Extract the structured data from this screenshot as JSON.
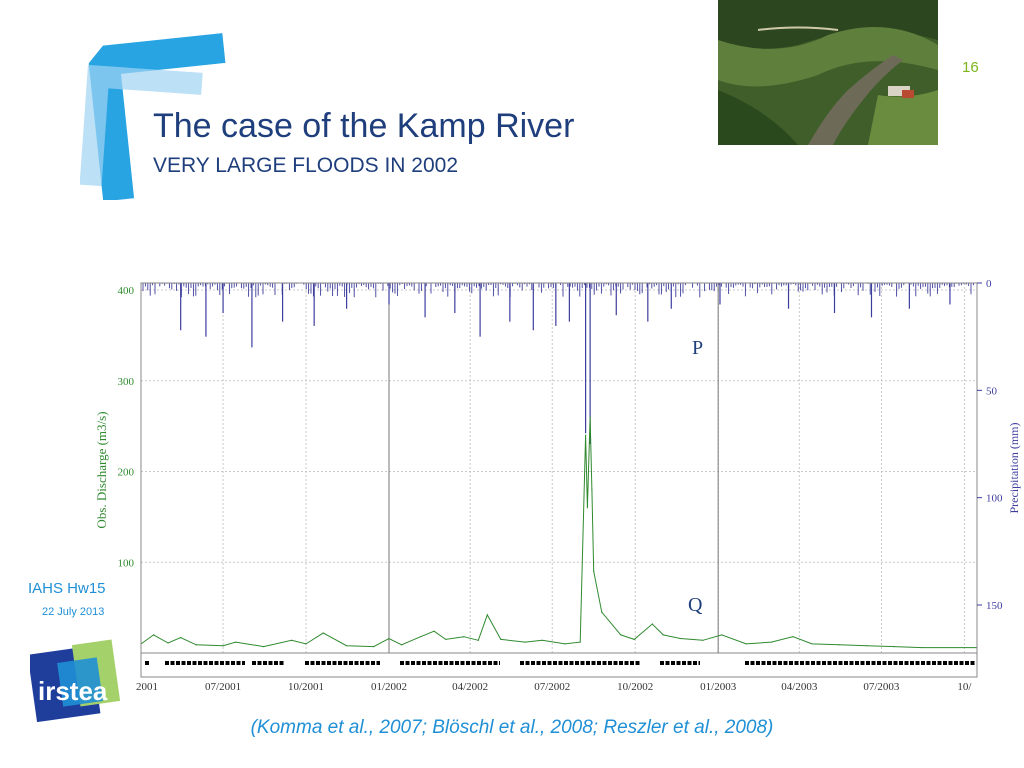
{
  "slide": {
    "title": "The case of the Kamp River",
    "subtitle": "VERY LARGE FLOODS IN 2002",
    "number": "16",
    "conference": "IAHS Hw15",
    "date": "22 July 2013",
    "logo_text": "irstea",
    "citation": "(Komma et al., 2007; Blöschl et al., 2008; Reszler et al., 2008)"
  },
  "colors": {
    "title": "#1f3e7c",
    "accent_blue": "#1f8fd6",
    "slide_number": "#7bb51b",
    "discharge": "#2f8a2f",
    "precipitation": "#3d3d9e",
    "axis_left": "#2f8a2f",
    "axis_right": "#3d3d9e"
  },
  "chart_data": {
    "type": "line",
    "xlabel": "",
    "y_left_label": "Obs. Discharge (m3/s)",
    "y_right_label": "Precipitation (mm)",
    "x_tick_labels": [
      "2001",
      "07/2001",
      "10/2001",
      "01/2002",
      "04/2002",
      "07/2002",
      "10/2002",
      "01/2003",
      "04/2003",
      "07/2003",
      "10/"
    ],
    "y_left_ticks": [
      100,
      200,
      300,
      400
    ],
    "y_right_ticks": [
      0,
      50,
      100,
      150
    ],
    "y_left_range": [
      0,
      400
    ],
    "y_right_range": [
      0,
      175
    ],
    "x_range": [
      "2001-04-01",
      "2003-10-15"
    ],
    "grid": true,
    "annotations": [
      "P",
      "Q"
    ],
    "series": [
      {
        "name": "Q",
        "axis": "left",
        "points": [
          [
            "2001-04-01",
            10
          ],
          [
            "2001-04-15",
            20
          ],
          [
            "2001-05-01",
            11
          ],
          [
            "2001-05-15",
            17
          ],
          [
            "2001-06-01",
            9
          ],
          [
            "2001-07-01",
            8
          ],
          [
            "2001-07-15",
            12
          ],
          [
            "2001-08-15",
            7
          ],
          [
            "2001-09-15",
            14
          ],
          [
            "2001-10-01",
            10
          ],
          [
            "2001-10-20",
            22
          ],
          [
            "2001-11-15",
            8
          ],
          [
            "2001-12-15",
            7
          ],
          [
            "2002-01-01",
            16
          ],
          [
            "2002-01-15",
            9
          ],
          [
            "2002-02-05",
            18
          ],
          [
            "2002-02-20",
            24
          ],
          [
            "2002-03-05",
            15
          ],
          [
            "2002-03-25",
            18
          ],
          [
            "2002-04-10",
            14
          ],
          [
            "2002-04-20",
            42
          ],
          [
            "2002-05-05",
            15
          ],
          [
            "2002-06-01",
            12
          ],
          [
            "2002-06-20",
            14
          ],
          [
            "2002-07-15",
            10
          ],
          [
            "2002-08-01",
            12
          ],
          [
            "2002-08-07",
            240
          ],
          [
            "2002-08-09",
            160
          ],
          [
            "2002-08-12",
            260
          ],
          [
            "2002-08-14",
            180
          ],
          [
            "2002-08-16",
            90
          ],
          [
            "2002-08-25",
            45
          ],
          [
            "2002-09-15",
            20
          ],
          [
            "2002-09-30",
            15
          ],
          [
            "2002-10-20",
            32
          ],
          [
            "2002-11-01",
            20
          ],
          [
            "2002-11-20",
            16
          ],
          [
            "2002-12-15",
            14
          ],
          [
            "2003-01-05",
            20
          ],
          [
            "2003-02-01",
            10
          ],
          [
            "2003-03-01",
            12
          ],
          [
            "2003-03-25",
            18
          ],
          [
            "2003-04-15",
            10
          ],
          [
            "2003-05-15",
            9
          ],
          [
            "2003-06-15",
            8
          ],
          [
            "2003-07-15",
            7
          ],
          [
            "2003-08-15",
            6
          ],
          [
            "2003-10-15",
            6
          ]
        ]
      },
      {
        "name": "P",
        "axis": "right",
        "points": [
          [
            "2001-05-15",
            22
          ],
          [
            "2001-06-12",
            25
          ],
          [
            "2001-07-01",
            14
          ],
          [
            "2001-08-02",
            30
          ],
          [
            "2001-09-05",
            18
          ],
          [
            "2001-10-10",
            20
          ],
          [
            "2001-11-15",
            12
          ],
          [
            "2002-01-01",
            10
          ],
          [
            "2002-02-10",
            16
          ],
          [
            "2002-03-15",
            14
          ],
          [
            "2002-04-12",
            25
          ],
          [
            "2002-05-15",
            18
          ],
          [
            "2002-06-10",
            22
          ],
          [
            "2002-07-05",
            20
          ],
          [
            "2002-07-20",
            18
          ],
          [
            "2002-08-07",
            70
          ],
          [
            "2002-08-12",
            75
          ],
          [
            "2002-09-10",
            15
          ],
          [
            "2002-10-15",
            18
          ],
          [
            "2002-11-10",
            12
          ],
          [
            "2003-01-03",
            10
          ],
          [
            "2003-03-20",
            12
          ],
          [
            "2003-05-10",
            14
          ],
          [
            "2003-06-20",
            16
          ],
          [
            "2003-08-01",
            12
          ],
          [
            "2003-09-15",
            10
          ]
        ]
      }
    ]
  }
}
